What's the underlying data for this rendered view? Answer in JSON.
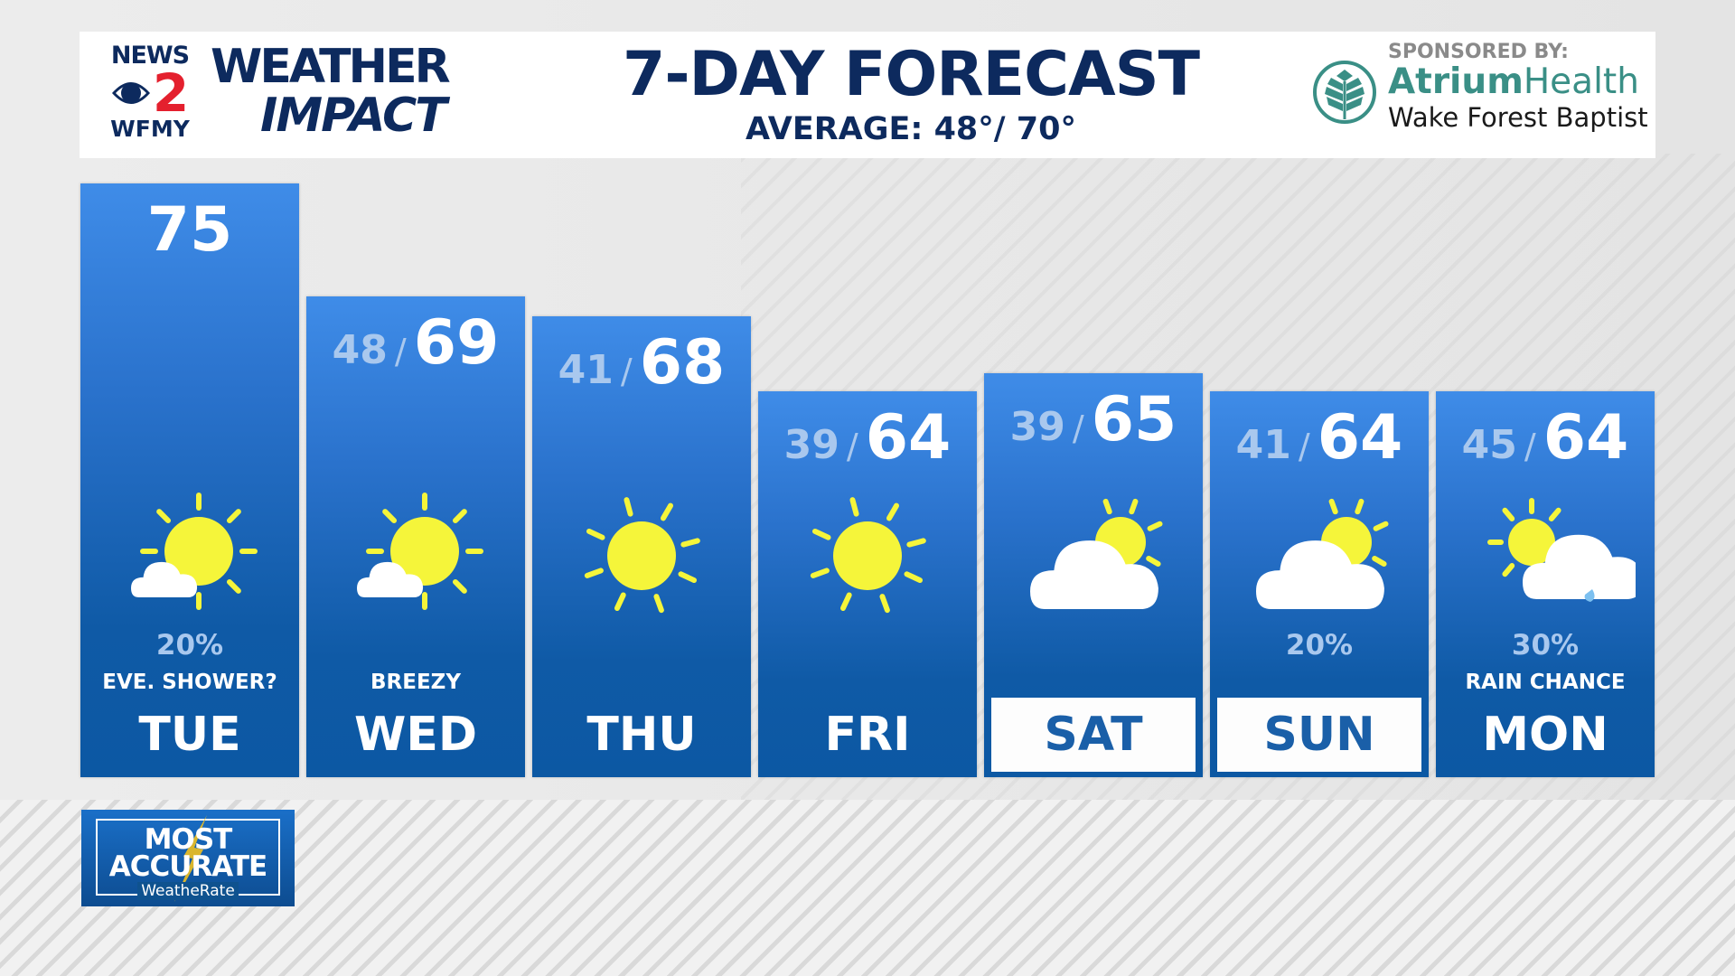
{
  "header": {
    "station_logo": {
      "top": "NEWS",
      "number": "2",
      "bottom": "WFMY"
    },
    "brand": {
      "line1": "WEATHER",
      "line2": "IMPACT"
    },
    "title": "7-DAY FORECAST",
    "average": "AVERAGE: 48°/ 70°",
    "sponsor": {
      "label": "SPONSORED BY:",
      "name_bold": "Atrium",
      "name_light": "Health",
      "subname": "Wake Forest Baptist"
    }
  },
  "colors": {
    "navy": "#0d2a5e",
    "accent_red": "#e4202e",
    "column_top": "#3f8ce8",
    "column_bottom": "#0c58a3",
    "low_temp": "#a9c8ee",
    "sun": "#f5f53a",
    "sponsor_teal": "#3a8f86"
  },
  "days": [
    {
      "day": "TUE",
      "low": "",
      "high": "75",
      "icon": "partly-sunny-icon",
      "precip": "20%",
      "condition": "EVE. SHOWER?",
      "boxed": false
    },
    {
      "day": "WED",
      "low": "48",
      "high": "69",
      "icon": "partly-sunny-icon",
      "precip": "",
      "condition": "BREEZY",
      "boxed": false
    },
    {
      "day": "THU",
      "low": "41",
      "high": "68",
      "icon": "sunny-icon",
      "precip": "",
      "condition": "",
      "boxed": false
    },
    {
      "day": "FRI",
      "low": "39",
      "high": "64",
      "icon": "sunny-icon",
      "precip": "",
      "condition": "",
      "boxed": false
    },
    {
      "day": "SAT",
      "low": "39",
      "high": "65",
      "icon": "mostly-cloudy-icon",
      "precip": "",
      "condition": "",
      "boxed": true
    },
    {
      "day": "SUN",
      "low": "41",
      "high": "64",
      "icon": "mostly-cloudy-icon",
      "precip": "20%",
      "condition": "",
      "boxed": true
    },
    {
      "day": "MON",
      "low": "45",
      "high": "64",
      "icon": "cloudy-rain-icon",
      "precip": "30%",
      "condition": "RAIN CHANCE",
      "boxed": false
    }
  ],
  "badge": {
    "line1": "MOST",
    "line2": "ACCURATE",
    "line3": "WeatheRate"
  }
}
